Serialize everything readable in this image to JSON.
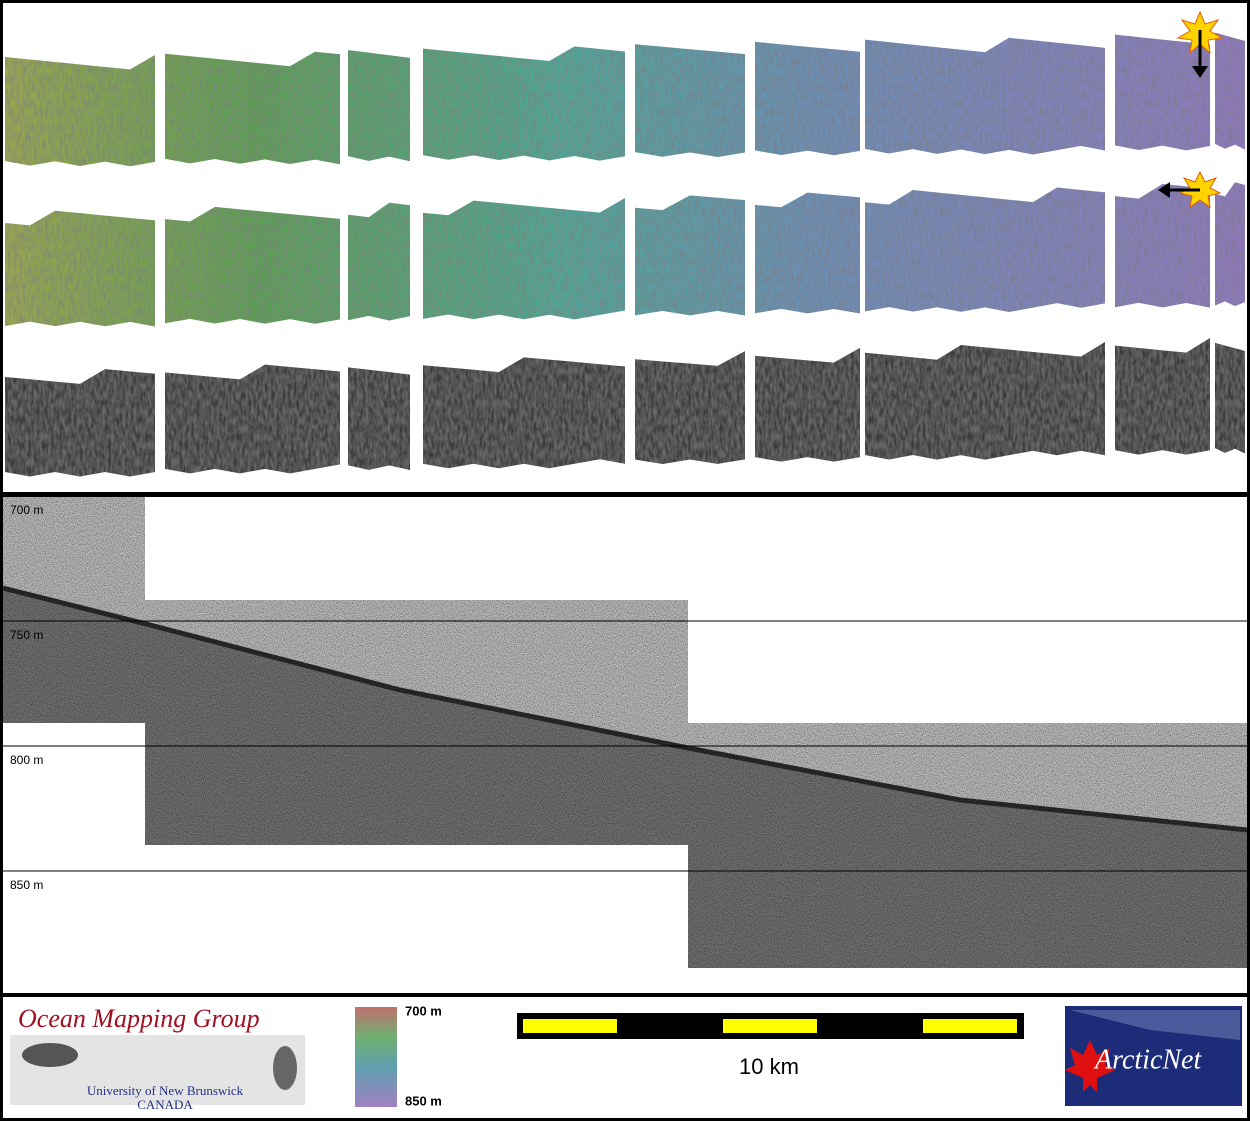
{
  "profile": {
    "depth_labels": [
      "700 m",
      "750 m",
      "800 m",
      "850 m"
    ]
  },
  "footer": {
    "logo_title": "Ocean Mapping Group",
    "logo_subtitle": "University of New Brunswick",
    "logo_country": "CANADA",
    "colorbar_top": "700 m",
    "colorbar_bottom": "850 m",
    "scale_bar_label": "10 km",
    "partner_logo": "ArcticNet"
  }
}
